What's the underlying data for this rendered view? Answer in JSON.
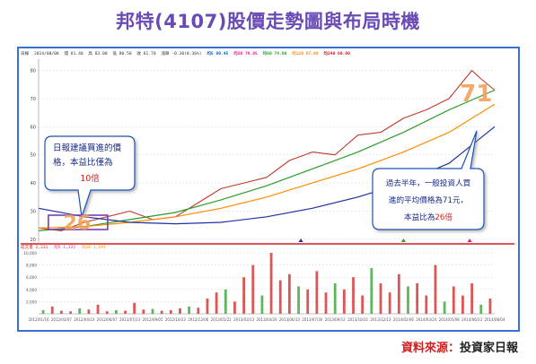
{
  "title": "邦特(4107)股價走勢圖與布局時機",
  "stock_info": {
    "code": "日線",
    "date": "2014/08/08",
    "open": "開 81.40",
    "high": "高 83.00",
    "low": "低 80.50",
    "close": "收 81.70",
    "change": "漲跌 -0.30(0.36%)",
    "ma5": "均5 80.45",
    "ma20": "均20 79.85",
    "ma60": "均60 74.60",
    "ma120": "均120 67.80",
    "ma240": "均240 60.00",
    "ma_colors": [
      "#0a5fd6",
      "#e0208a",
      "#2a9d2a",
      "#ff8c00",
      "#d62020"
    ]
  },
  "volume_info": {
    "label": "成交量 2,231",
    "v1": "均5 1,322",
    "v2": "均20 1,193",
    "colors": [
      "#d21e1e",
      "#e0208a",
      "#ff8c00"
    ]
  },
  "chart_data": {
    "type": "line",
    "title": "邦特(4107)股價走勢圖與布局時機",
    "ylim": [
      19,
      84
    ],
    "yticks": [
      20,
      30,
      40,
      50,
      60,
      70,
      80
    ],
    "vol_ylim": [
      0,
      10000
    ],
    "vol_yticks": [
      2000,
      4000,
      6000,
      8000,
      10000
    ],
    "vol_tick_labels": [
      "2,000",
      "4,000",
      "6,000",
      "8,000",
      "10,000"
    ],
    "x_tick_labels": [
      "2012/01/16",
      "2012/03/07",
      "2012/04/23",
      "2012/06/07",
      "2012/07/23",
      "2012/09/05",
      "2012/10/23",
      "2012/12/06",
      "2013/01/22",
      "2013/03/13",
      "2013/04/26",
      "2013/06/13",
      "2013/07/30",
      "2013/09/12",
      "2013/10/31",
      "2013/12/13",
      "2014/02/06",
      "2014/03/24",
      "2014/05/08",
      "2014/06/23",
      "2014/08/04"
    ],
    "series": [
      {
        "name": "收盤",
        "color": "#c0392b",
        "x": [
          0,
          0.05,
          0.1,
          0.15,
          0.2,
          0.25,
          0.3,
          0.35,
          0.4,
          0.45,
          0.5,
          0.55,
          0.6,
          0.65,
          0.7,
          0.75,
          0.8,
          0.85,
          0.9,
          0.93,
          0.95,
          0.97,
          1.0
        ],
        "values": [
          24,
          23,
          26,
          28,
          30,
          27,
          28,
          33,
          38,
          40,
          42,
          48,
          51,
          50,
          57,
          58,
          63,
          66,
          70,
          76,
          80,
          77,
          73
        ]
      },
      {
        "name": "均60",
        "color": "#2a9d2a",
        "x": [
          0,
          0.1,
          0.2,
          0.3,
          0.4,
          0.5,
          0.6,
          0.7,
          0.8,
          0.9,
          1.0
        ],
        "values": [
          23,
          24.5,
          27,
          29.5,
          34,
          39,
          45,
          51,
          58,
          66,
          73
        ]
      },
      {
        "name": "均120",
        "color": "#ff8c00",
        "x": [
          0,
          0.1,
          0.2,
          0.3,
          0.4,
          0.5,
          0.6,
          0.7,
          0.8,
          0.9,
          1.0
        ],
        "values": [
          24,
          24.5,
          26,
          28,
          31,
          35,
          40,
          45,
          51,
          58,
          68
        ]
      },
      {
        "name": "均240",
        "color": "#1f2f9e",
        "x": [
          0,
          0.1,
          0.2,
          0.3,
          0.4,
          0.5,
          0.6,
          0.7,
          0.8,
          0.9,
          1.0
        ],
        "values": [
          31,
          28,
          26,
          25.5,
          26,
          28,
          31,
          35,
          40,
          47,
          60
        ]
      }
    ],
    "markers": [
      {
        "x": 0.575,
        "color": "#1f2f9e"
      },
      {
        "x": 0.8,
        "color": "#2a9d2a"
      },
      {
        "x": 0.945,
        "color": "#e0208a"
      }
    ],
    "volume": {
      "x": [
        0.01,
        0.03,
        0.05,
        0.07,
        0.09,
        0.11,
        0.13,
        0.15,
        0.17,
        0.19,
        0.21,
        0.23,
        0.25,
        0.27,
        0.29,
        0.31,
        0.33,
        0.35,
        0.37,
        0.39,
        0.41,
        0.43,
        0.45,
        0.47,
        0.49,
        0.51,
        0.53,
        0.55,
        0.57,
        0.59,
        0.61,
        0.63,
        0.65,
        0.67,
        0.69,
        0.71,
        0.73,
        0.75,
        0.77,
        0.79,
        0.81,
        0.83,
        0.85,
        0.87,
        0.89,
        0.91,
        0.93,
        0.95,
        0.97,
        0.99
      ],
      "values": [
        600,
        1200,
        500,
        400,
        900,
        700,
        1500,
        400,
        600,
        500,
        1800,
        700,
        800,
        500,
        600,
        900,
        1200,
        1000,
        2500,
        3500,
        4000,
        2000,
        6000,
        8000,
        3000,
        10000,
        5500,
        6500,
        4500,
        4000,
        7000,
        3500,
        5000,
        4000,
        6000,
        3000,
        7500,
        5000,
        3500,
        6500,
        4500,
        5000,
        3000,
        8000,
        2000,
        4500,
        3000,
        5000,
        1500,
        2500
      ]
    },
    "annotations": [
      {
        "kind": "price-box",
        "label": "26",
        "x": 0.045,
        "price": 26
      },
      {
        "kind": "price-box",
        "label": "71",
        "x": 0.975,
        "price": 71
      }
    ]
  },
  "callout_left": {
    "line1": "日報建議買進的價",
    "line2": "格，本益比僅為",
    "emph": "10倍"
  },
  "callout_right": {
    "line1": "過去半年，一般投資人買",
    "line2": "進的平均價格為71元，",
    "line3_a": "本益比為",
    "line3_b": "26倍"
  },
  "source": {
    "label": "資料來源：",
    "value": "投資家日報"
  }
}
